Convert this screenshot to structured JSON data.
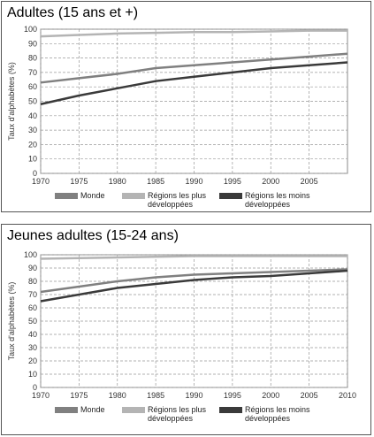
{
  "chart_data": [
    {
      "type": "line",
      "title": "Adultes (15 ans et +)",
      "y_label": "Taux d'alphabètes (%)",
      "x": [
        1970,
        1975,
        1980,
        1985,
        1990,
        1995,
        2000,
        2005,
        2010
      ],
      "xlim": [
        1970,
        2010
      ],
      "xticks": [
        1970,
        1975,
        1980,
        1985,
        1990,
        1995,
        2000,
        2005
      ],
      "ylim": [
        0,
        100
      ],
      "yticks": [
        0,
        10,
        20,
        30,
        40,
        50,
        60,
        70,
        80,
        90,
        100
      ],
      "grid": true,
      "series": [
        {
          "name": "Monde",
          "color": "#808080",
          "values": [
            63,
            66,
            69,
            73,
            75,
            77,
            79,
            81,
            83
          ]
        },
        {
          "name": "Régions les plus développées",
          "color": "#b4b4b4",
          "values": [
            95,
            96,
            97,
            97.5,
            98,
            98,
            98.5,
            99,
            99
          ]
        },
        {
          "name": "Régions les moins développées",
          "color": "#3a3a3a",
          "values": [
            48,
            54,
            59,
            64,
            67,
            70,
            73,
            75,
            77
          ]
        }
      ]
    },
    {
      "type": "line",
      "title": "Jeunes adultes (15-24 ans)",
      "y_label": "Taux d'alphabètes (%)",
      "x": [
        1970,
        1975,
        1980,
        1985,
        1990,
        1995,
        2000,
        2005,
        2010
      ],
      "xlim": [
        1970,
        2010
      ],
      "xticks": [
        1970,
        1975,
        1980,
        1985,
        1990,
        1995,
        2000,
        2005,
        2010
      ],
      "ylim": [
        0,
        100
      ],
      "yticks": [
        0,
        10,
        20,
        30,
        40,
        50,
        60,
        70,
        80,
        90,
        100
      ],
      "grid": true,
      "series": [
        {
          "name": "Monde",
          "color": "#808080",
          "values": [
            72,
            76,
            80,
            83,
            85,
            86,
            87,
            88,
            89
          ]
        },
        {
          "name": "Régions les plus développées",
          "color": "#b4b4b4",
          "values": [
            97,
            97.5,
            98,
            98.5,
            99,
            99,
            99,
            99,
            99
          ]
        },
        {
          "name": "Régions les moins développées",
          "color": "#3a3a3a",
          "values": [
            65,
            70,
            75,
            78,
            81,
            83,
            84,
            86,
            88
          ]
        }
      ]
    }
  ]
}
